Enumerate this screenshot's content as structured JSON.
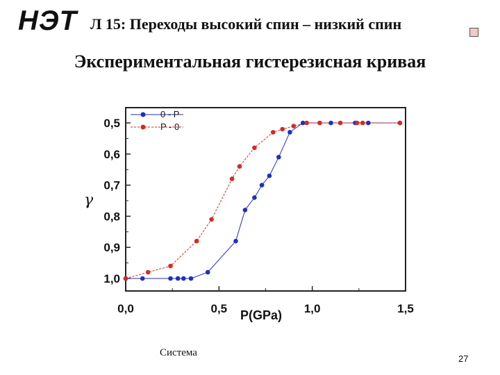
{
  "header": {
    "logo": "НЭТ",
    "lecture_title": "Л 15: Переходы высокий спин – низкий спин"
  },
  "slide_title": "Экспериментальная гистерезисная кривая",
  "caption": "Система",
  "page_number": "27",
  "chart_data": {
    "type": "line",
    "title": "",
    "xlabel": "P(GPa)",
    "ylabel": "γ",
    "xlim": [
      0.0,
      1.5
    ],
    "ylim": [
      1.0,
      0.45
    ],
    "y_inverted": true,
    "grid": false,
    "legend_position": "top-left",
    "x_ticks": [
      "0,0",
      "0,5",
      "1,0",
      "1,5"
    ],
    "y_ticks": [
      "0,5",
      "0,6",
      "0,7",
      "0,8",
      "0,9",
      "1,0"
    ],
    "y_tick_values": [
      0.5,
      0.6,
      0.7,
      0.8,
      0.9,
      1.0
    ],
    "x_tick_values": [
      0.0,
      0.5,
      1.0,
      1.5
    ],
    "series": [
      {
        "name": "0 - P",
        "color": "#1e2fbf",
        "line_style": "solid",
        "x": [
          0.0,
          0.09,
          0.24,
          0.28,
          0.31,
          0.35,
          0.44,
          0.59,
          0.64,
          0.69,
          0.73,
          0.77,
          0.82,
          0.88,
          0.95,
          1.1,
          1.23,
          1.3,
          1.47
        ],
        "y": [
          1.0,
          1.0,
          1.0,
          1.0,
          1.0,
          1.0,
          0.98,
          0.88,
          0.78,
          0.74,
          0.7,
          0.67,
          0.61,
          0.53,
          0.5,
          0.5,
          0.5,
          0.5,
          0.5
        ]
      },
      {
        "name": "P - 0",
        "color": "#d62a1e",
        "line_style": "dashed",
        "x": [
          0.0,
          0.12,
          0.24,
          0.38,
          0.46,
          0.57,
          0.61,
          0.69,
          0.79,
          0.84,
          0.9,
          0.97,
          1.04,
          1.15,
          1.24,
          1.27,
          1.47
        ],
        "y": [
          1.0,
          0.98,
          0.96,
          0.88,
          0.81,
          0.68,
          0.64,
          0.58,
          0.53,
          0.52,
          0.51,
          0.5,
          0.5,
          0.5,
          0.5,
          0.5,
          0.5
        ]
      }
    ]
  }
}
